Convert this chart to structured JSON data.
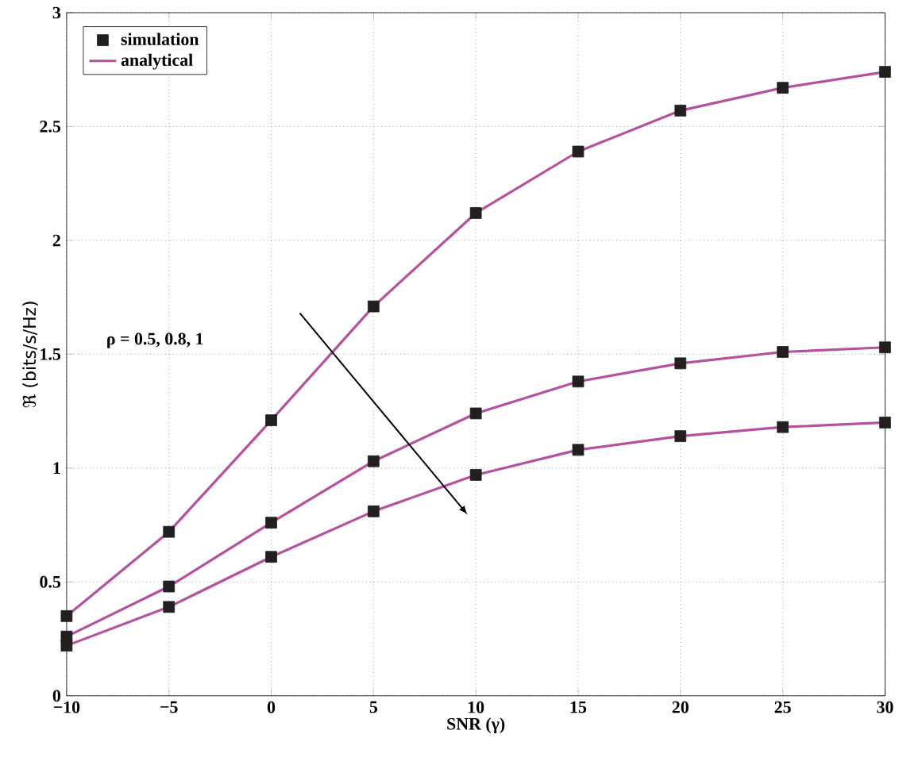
{
  "chart_data": {
    "type": "line",
    "xlabel": "SNR (γ)",
    "ylabel": "ℜ (bits/s/Hz)",
    "x": [
      -10,
      -5,
      0,
      5,
      10,
      15,
      20,
      25,
      30
    ],
    "series": [
      {
        "name": "simulation",
        "type": "scatter",
        "color": "#231f20",
        "marker": "square",
        "values": [
          0.35,
          0.72,
          1.21,
          1.71,
          2.12,
          2.39,
          2.57,
          2.67,
          2.74
        ]
      },
      {
        "name": "analytical",
        "color": "#b5519f",
        "marker": "none",
        "values": [
          0.35,
          0.72,
          1.21,
          1.71,
          2.12,
          2.39,
          2.57,
          2.67,
          2.74
        ]
      },
      {
        "type": "scatter",
        "color": "#231f20",
        "marker": "square",
        "values": [
          0.26,
          0.48,
          0.76,
          1.03,
          1.24,
          1.38,
          1.46,
          1.51,
          1.53
        ]
      },
      {
        "color": "#b5519f",
        "marker": "none",
        "values": [
          0.26,
          0.48,
          0.76,
          1.03,
          1.24,
          1.38,
          1.46,
          1.51,
          1.53
        ]
      },
      {
        "type": "scatter",
        "color": "#231f20",
        "marker": "square",
        "values": [
          0.22,
          0.39,
          0.61,
          0.81,
          0.97,
          1.08,
          1.14,
          1.18,
          1.2
        ]
      },
      {
        "color": "#b5519f",
        "marker": "none",
        "values": [
          0.22,
          0.39,
          0.61,
          0.81,
          0.97,
          1.08,
          1.14,
          1.18,
          1.2
        ]
      }
    ],
    "annotations": [
      "ρ = 0.5, 0.8, 1"
    ],
    "xlim": [
      -10,
      30
    ],
    "ylim": [
      0,
      3
    ],
    "xticks": [
      {
        "value": -10,
        "label": "−10"
      },
      {
        "value": -5,
        "label": "−5"
      },
      0,
      5,
      10,
      15,
      20,
      25,
      30
    ],
    "yticks": [
      0,
      0.5,
      1,
      1.5,
      2,
      2.5,
      3
    ],
    "grid": true,
    "legend": "top left"
  }
}
